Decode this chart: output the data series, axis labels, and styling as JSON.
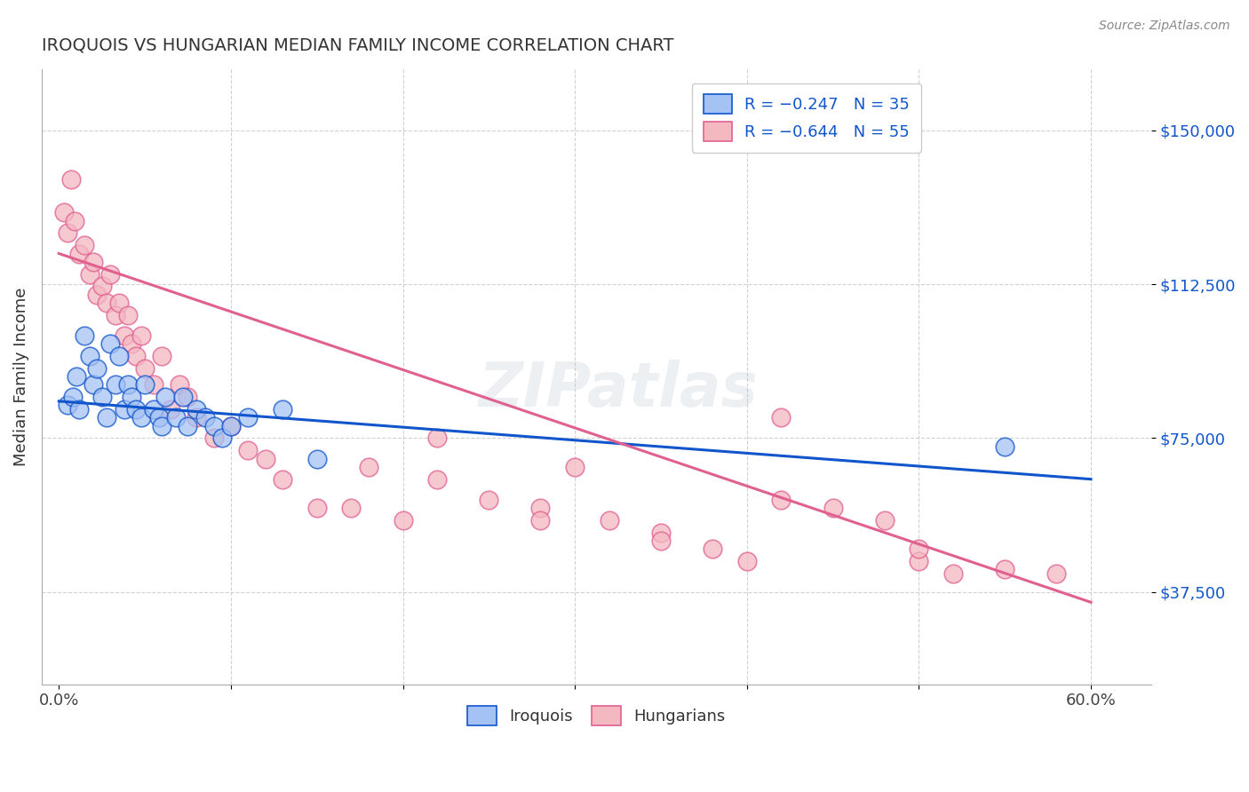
{
  "title": "IROQUOIS VS HUNGARIAN MEDIAN FAMILY INCOME CORRELATION CHART",
  "source": "Source: ZipAtlas.com",
  "ylabel": "Median Family Income",
  "yticks": [
    37500,
    75000,
    112500,
    150000
  ],
  "ytick_labels": [
    "$37,500",
    "$75,000",
    "$112,500",
    "$150,000"
  ],
  "ylim": [
    15000,
    165000
  ],
  "xlim": [
    -0.01,
    0.635
  ],
  "blue_color": "#a4c2f4",
  "pink_color": "#f4b8c1",
  "blue_line_color": "#1155cc",
  "pink_line_color": "#e06090",
  "watermark": "ZIPatlas",
  "iroquois_x": [
    0.005,
    0.008,
    0.01,
    0.012,
    0.015,
    0.018,
    0.02,
    0.022,
    0.025,
    0.028,
    0.03,
    0.033,
    0.035,
    0.038,
    0.04,
    0.042,
    0.045,
    0.048,
    0.05,
    0.055,
    0.058,
    0.06,
    0.062,
    0.068,
    0.072,
    0.075,
    0.08,
    0.085,
    0.09,
    0.095,
    0.1,
    0.11,
    0.13,
    0.15,
    0.55
  ],
  "iroquois_y": [
    83000,
    85000,
    90000,
    82000,
    100000,
    95000,
    88000,
    92000,
    85000,
    80000,
    98000,
    88000,
    95000,
    82000,
    88000,
    85000,
    82000,
    80000,
    88000,
    82000,
    80000,
    78000,
    85000,
    80000,
    85000,
    78000,
    82000,
    80000,
    78000,
    75000,
    78000,
    80000,
    82000,
    70000,
    73000
  ],
  "hungarian_x": [
    0.003,
    0.005,
    0.007,
    0.009,
    0.012,
    0.015,
    0.018,
    0.02,
    0.022,
    0.025,
    0.028,
    0.03,
    0.033,
    0.035,
    0.038,
    0.04,
    0.042,
    0.045,
    0.048,
    0.05,
    0.055,
    0.06,
    0.065,
    0.07,
    0.075,
    0.08,
    0.09,
    0.1,
    0.11,
    0.12,
    0.13,
    0.15,
    0.17,
    0.2,
    0.22,
    0.25,
    0.28,
    0.3,
    0.32,
    0.35,
    0.38,
    0.4,
    0.42,
    0.45,
    0.48,
    0.5,
    0.52,
    0.55,
    0.58,
    0.18,
    0.22,
    0.35,
    0.42,
    0.5,
    0.28
  ],
  "hungarian_y": [
    130000,
    125000,
    138000,
    128000,
    120000,
    122000,
    115000,
    118000,
    110000,
    112000,
    108000,
    115000,
    105000,
    108000,
    100000,
    105000,
    98000,
    95000,
    100000,
    92000,
    88000,
    95000,
    82000,
    88000,
    85000,
    80000,
    75000,
    78000,
    72000,
    70000,
    65000,
    58000,
    58000,
    55000,
    75000,
    60000,
    58000,
    68000,
    55000,
    52000,
    48000,
    45000,
    80000,
    58000,
    55000,
    45000,
    42000,
    43000,
    42000,
    68000,
    65000,
    50000,
    60000,
    48000,
    55000
  ]
}
